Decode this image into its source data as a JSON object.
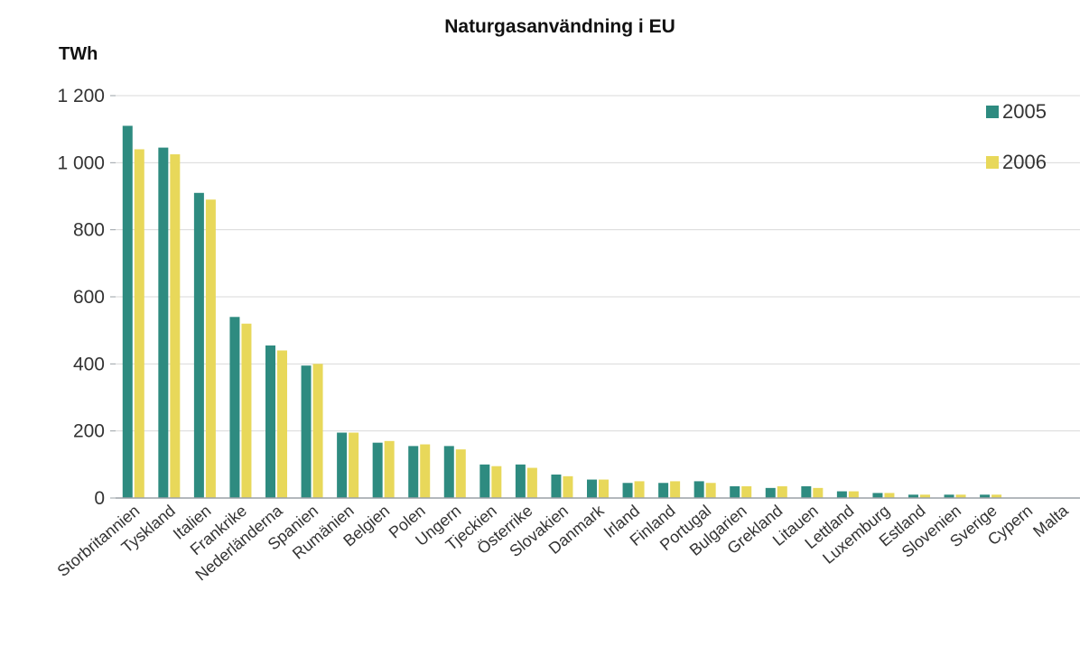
{
  "chart_data": {
    "type": "bar",
    "title": "Naturgasanvändning i EU",
    "ylabel": "TWh",
    "xlabel": "",
    "ylim": [
      0,
      1200
    ],
    "yticks": [
      {
        "value": 0,
        "label": "0"
      },
      {
        "value": 200,
        "label": "200"
      },
      {
        "value": 400,
        "label": "400"
      },
      {
        "value": 600,
        "label": "600"
      },
      {
        "value": 800,
        "label": "800"
      },
      {
        "value": 1000,
        "label": "1 000"
      },
      {
        "value": 1200,
        "label": "1 200"
      }
    ],
    "grid": true,
    "legend_position": "top-right",
    "categories": [
      "Storbritannien",
      "Tyskland",
      "Italien",
      "Frankrike",
      "Nederländerna",
      "Spanien",
      "Rumänien",
      "Belgien",
      "Polen",
      "Ungern",
      "Tjeckien",
      "Österrike",
      "Slovakien",
      "Danmark",
      "Irland",
      "Finland",
      "Portugal",
      "Bulgarien",
      "Grekland",
      "Litauen",
      "Lettland",
      "Luxemburg",
      "Estland",
      "Slovenien",
      "Sverige",
      "Cypern",
      "Malta"
    ],
    "series": [
      {
        "name": "2005",
        "color": "#2e8b80",
        "values": [
          1110,
          1045,
          910,
          540,
          455,
          395,
          195,
          165,
          155,
          155,
          100,
          100,
          70,
          55,
          45,
          45,
          50,
          35,
          30,
          35,
          20,
          15,
          10,
          10,
          10,
          0,
          0
        ]
      },
      {
        "name": "2006",
        "color": "#e8d85a",
        "values": [
          1040,
          1025,
          890,
          520,
          440,
          400,
          195,
          170,
          160,
          145,
          95,
          90,
          65,
          55,
          50,
          50,
          45,
          35,
          35,
          30,
          20,
          15,
          10,
          10,
          10,
          0,
          0
        ]
      }
    ]
  }
}
